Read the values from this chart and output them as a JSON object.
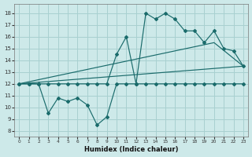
{
  "xlabel": "Humidex (Indice chaleur)",
  "bg_color": "#cde9e9",
  "grid_color": "#a8d0d0",
  "line_color": "#1a6b6b",
  "xlim": [
    -0.5,
    23.5
  ],
  "ylim": [
    7.5,
    18.8
  ],
  "yticks": [
    8,
    9,
    10,
    11,
    12,
    13,
    14,
    15,
    16,
    17,
    18
  ],
  "xticks": [
    0,
    1,
    2,
    3,
    4,
    5,
    6,
    7,
    8,
    9,
    10,
    11,
    12,
    13,
    14,
    15,
    16,
    17,
    18,
    19,
    20,
    21,
    22,
    23
  ],
  "line1_x": [
    0,
    1,
    2,
    3,
    4,
    5,
    6,
    7,
    8,
    9,
    10,
    11,
    12,
    13,
    14,
    15,
    16,
    17,
    18,
    19,
    20,
    21,
    22,
    23
  ],
  "line1_y": [
    12,
    12,
    12,
    12,
    12,
    12,
    12,
    12,
    12,
    12,
    14.5,
    16.0,
    12.0,
    18.0,
    17.5,
    18.0,
    17.5,
    16.5,
    16.5,
    15.5,
    16.5,
    15.0,
    14.8,
    13.5
  ],
  "line2_x": [
    0,
    1,
    2,
    3,
    4,
    5,
    6,
    7,
    8,
    9,
    10,
    11,
    12,
    13,
    14,
    15,
    16,
    17,
    18,
    19,
    20,
    21,
    22,
    23
  ],
  "line2_y": [
    12,
    12,
    12,
    9.5,
    10.8,
    10.5,
    10.8,
    10.2,
    8.5,
    9.2,
    12,
    12,
    12,
    12,
    12,
    12,
    12,
    12,
    12,
    12,
    12,
    12,
    12,
    12
  ],
  "line3_x": [
    0,
    23
  ],
  "line3_y": [
    12,
    13.5
  ],
  "line4_x": [
    0,
    20,
    23
  ],
  "line4_y": [
    12,
    15.5,
    13.5
  ]
}
